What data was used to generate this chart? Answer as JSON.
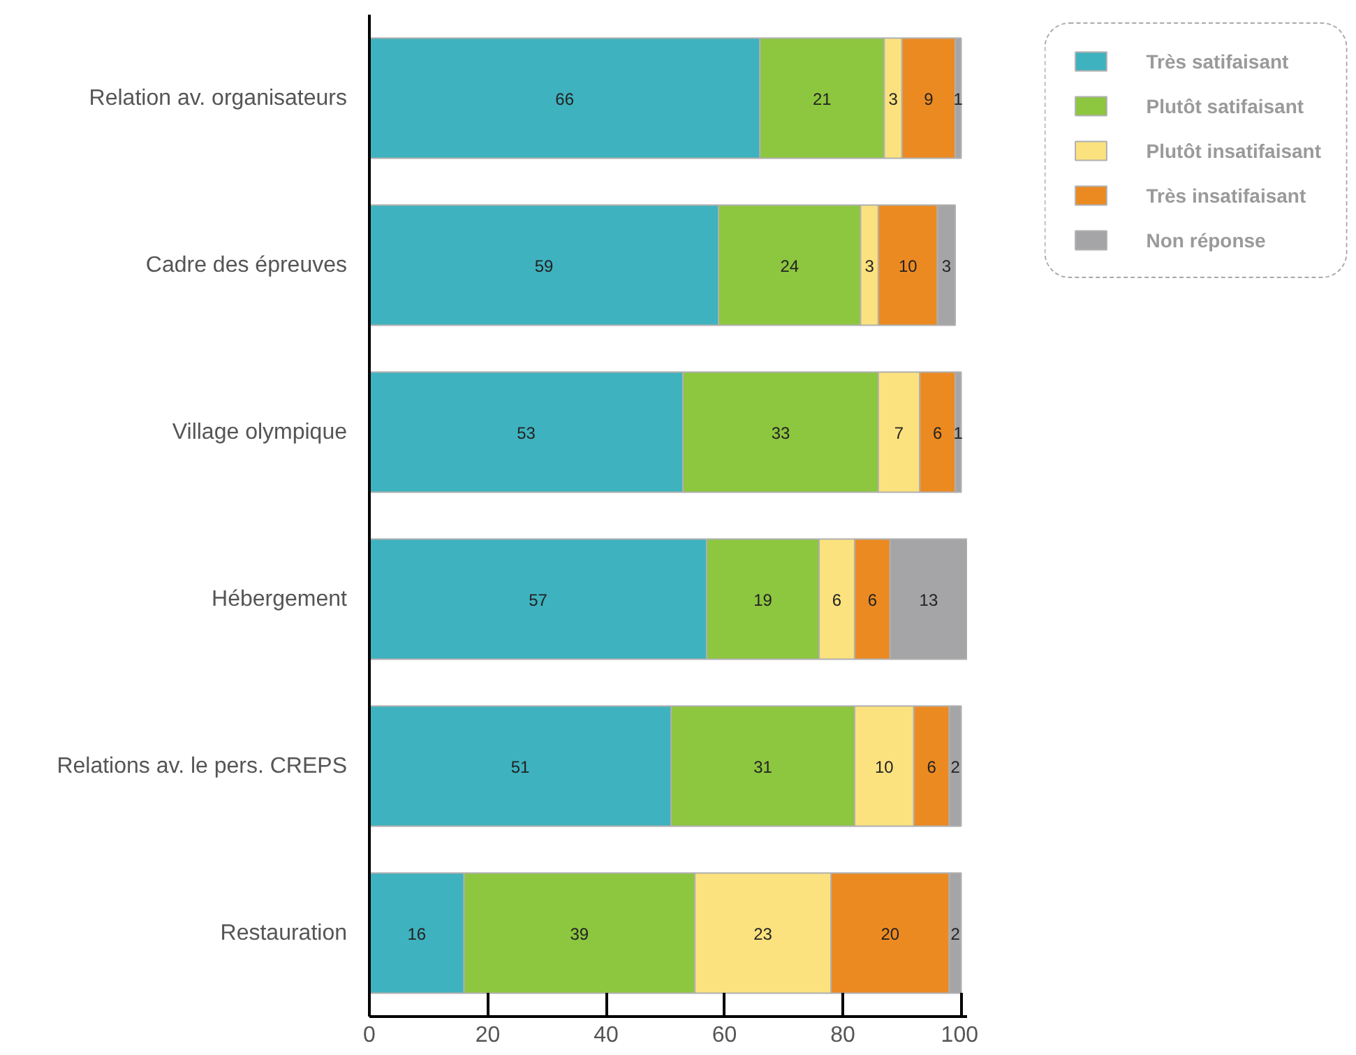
{
  "chart_data": {
    "type": "bar",
    "orientation": "horizontal",
    "stacked": true,
    "categories": [
      "Relation av. organisateurs",
      "Cadre des épreuves",
      "Village olympique",
      "Hébergement",
      "Relations av. le pers. CREPS",
      "Restauration"
    ],
    "series": [
      {
        "name": "Très satifaisant",
        "color": "#3fb2bf",
        "values": [
          66,
          59,
          53,
          57,
          51,
          16
        ]
      },
      {
        "name": "Plutôt satifaisant",
        "color": "#8dc63f",
        "values": [
          21,
          24,
          33,
          19,
          31,
          39
        ]
      },
      {
        "name": "Plutôt insatifaisant",
        "color": "#fbe27e",
        "values": [
          3,
          3,
          7,
          6,
          10,
          23
        ]
      },
      {
        "name": "Très insatifaisant",
        "color": "#ec8a22",
        "values": [
          9,
          10,
          6,
          6,
          6,
          20
        ]
      },
      {
        "name": "Non réponse",
        "color": "#a5a5a8",
        "values": [
          1,
          3,
          1,
          13,
          2,
          2
        ]
      }
    ],
    "xlim": [
      0,
      101
    ],
    "xticks": [
      0,
      20,
      40,
      60,
      80,
      100
    ],
    "data_labels": true,
    "legend": "top right",
    "grid": false
  }
}
